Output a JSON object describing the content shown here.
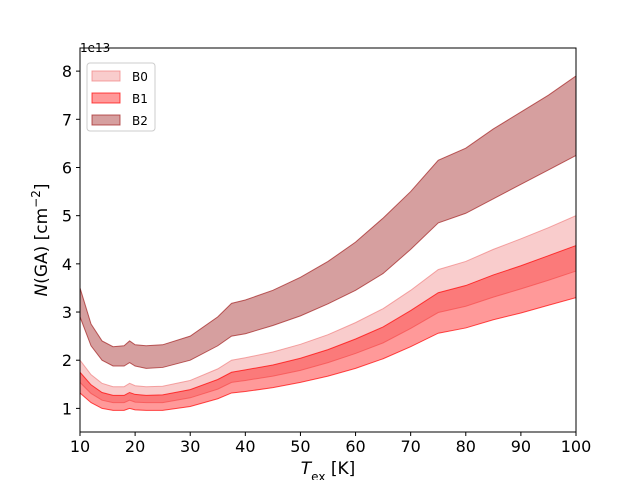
{
  "chart_data": {
    "type": "band",
    "y_offset_label": "1e13",
    "xlabel": "T",
    "xlabel_sub": "ex",
    "xlabel_rest": " [K]",
    "ylabel": "N",
    "ylabel_rest": "(GA)  [cm",
    "ylabel_sup": "−2",
    "ylabel_end": "]",
    "xlim": [
      10,
      100
    ],
    "ylim": [
      0.51,
      8.48
    ],
    "xticks": [
      10,
      20,
      30,
      40,
      50,
      60,
      70,
      80,
      90,
      100
    ],
    "yticks": [
      1,
      2,
      3,
      4,
      5,
      6,
      7,
      8
    ],
    "legend": "upper left",
    "x": [
      10,
      12,
      14,
      16,
      18,
      19,
      20,
      22,
      25,
      30,
      35,
      37.5,
      40,
      45,
      50,
      55,
      60,
      65,
      70,
      75,
      80,
      85,
      90,
      95,
      100
    ],
    "series": [
      {
        "name": "B0",
        "color": "#f08080",
        "alpha": 0.4,
        "upper": [
          2.0,
          1.7,
          1.52,
          1.45,
          1.45,
          1.52,
          1.47,
          1.45,
          1.46,
          1.58,
          1.82,
          2.0,
          2.05,
          2.17,
          2.33,
          2.53,
          2.78,
          3.07,
          3.45,
          3.88,
          4.05,
          4.3,
          4.52,
          4.75,
          5.0
        ],
        "lower": [
          1.54,
          1.31,
          1.17,
          1.12,
          1.12,
          1.17,
          1.13,
          1.12,
          1.12,
          1.22,
          1.4,
          1.54,
          1.58,
          1.67,
          1.79,
          1.95,
          2.14,
          2.36,
          2.66,
          2.99,
          3.12,
          3.31,
          3.48,
          3.66,
          3.85
        ]
      },
      {
        "name": "B1",
        "color": "#ff0000",
        "alpha": 0.4,
        "upper": [
          1.75,
          1.49,
          1.33,
          1.27,
          1.27,
          1.33,
          1.29,
          1.27,
          1.28,
          1.39,
          1.6,
          1.75,
          1.8,
          1.9,
          2.04,
          2.22,
          2.44,
          2.69,
          3.03,
          3.4,
          3.55,
          3.77,
          3.96,
          4.17,
          4.38
        ],
        "lower": [
          1.32,
          1.12,
          1.0,
          0.96,
          0.96,
          1.0,
          0.97,
          0.96,
          0.96,
          1.04,
          1.2,
          1.32,
          1.35,
          1.43,
          1.54,
          1.67,
          1.83,
          2.03,
          2.28,
          2.56,
          2.67,
          2.84,
          2.98,
          3.14,
          3.3
        ]
      },
      {
        "name": "B2",
        "color": "#a52a2a",
        "alpha": 0.45,
        "upper": [
          3.5,
          2.75,
          2.4,
          2.28,
          2.3,
          2.4,
          2.32,
          2.3,
          2.32,
          2.5,
          2.9,
          3.18,
          3.25,
          3.45,
          3.72,
          4.05,
          4.45,
          4.95,
          5.5,
          6.15,
          6.4,
          6.8,
          7.15,
          7.5,
          7.9
        ],
        "lower": [
          2.9,
          2.3,
          2.0,
          1.88,
          1.88,
          1.95,
          1.88,
          1.83,
          1.85,
          2.0,
          2.3,
          2.5,
          2.55,
          2.72,
          2.92,
          3.17,
          3.45,
          3.8,
          4.3,
          4.85,
          5.05,
          5.35,
          5.65,
          5.95,
          6.25
        ]
      }
    ]
  }
}
